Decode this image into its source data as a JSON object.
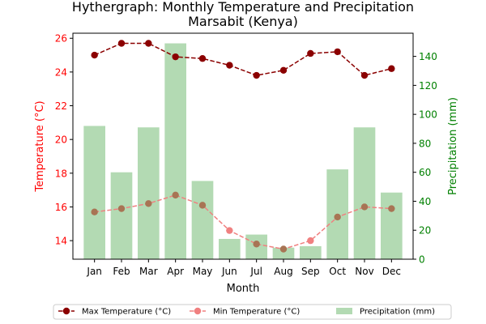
{
  "chart_data": {
    "type": "combo",
    "title": "Hythergraph: Monthly Temperature and Precipitation",
    "subtitle": "Marsabit (Kenya)",
    "xlabel": "Month",
    "ylabel_left": "Temperature (°C)",
    "ylabel_right": "Precipitation (mm)",
    "categories": [
      "Jan",
      "Feb",
      "Mar",
      "Apr",
      "May",
      "Jun",
      "Jul",
      "Aug",
      "Sep",
      "Oct",
      "Nov",
      "Dec"
    ],
    "ylim_left": [
      12.9,
      26.3
    ],
    "yticks_left": [
      14,
      16,
      18,
      20,
      22,
      24,
      26
    ],
    "ylim_right": [
      0,
      156
    ],
    "yticks_right": [
      0,
      20,
      40,
      60,
      80,
      100,
      120,
      140
    ],
    "series": [
      {
        "name": "Max Temperature (°C)",
        "kind": "line",
        "axis": "left",
        "color": "#8b0000",
        "style": "dashed",
        "marker": "circle",
        "values": [
          25.0,
          25.7,
          25.7,
          24.9,
          24.8,
          24.4,
          23.8,
          24.1,
          25.1,
          25.2,
          23.8,
          24.2
        ]
      },
      {
        "name": "Min Temperature (°C)",
        "kind": "line",
        "axis": "left",
        "color": "#f08080",
        "style": "dashed",
        "marker": "circle",
        "values": [
          15.7,
          15.9,
          16.2,
          16.7,
          16.1,
          14.6,
          13.8,
          13.5,
          14.0,
          15.4,
          16.0,
          15.9
        ]
      },
      {
        "name": "Precipitation (mm)",
        "kind": "bar",
        "axis": "right",
        "color": "#b3dab3",
        "values": [
          92,
          60,
          91,
          149,
          54,
          14,
          17,
          8,
          9,
          62,
          91,
          46
        ]
      }
    ],
    "overlap_marker_color": "#a87454",
    "legend": {
      "placement": "bottom-center",
      "entries": [
        "Max Temperature (°C)",
        "Min Temperature (°C)",
        "Precipitation (mm)"
      ]
    },
    "colors": {
      "left_axis": "#ff0000",
      "right_axis": "#008000",
      "axis_line": "#000000"
    },
    "grid": false
  }
}
